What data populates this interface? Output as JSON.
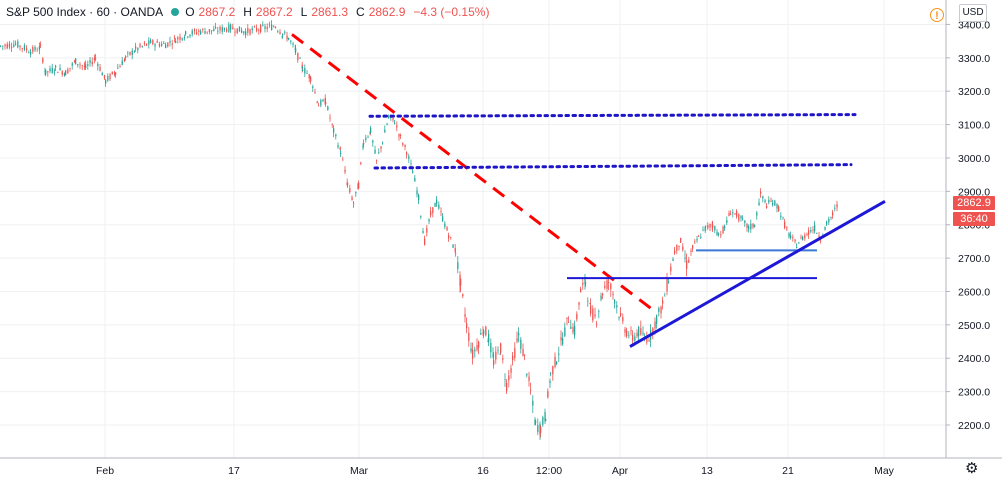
{
  "legend": {
    "title": "S&P 500 Index · 60 · OANDA",
    "open_k": "O",
    "open_v": "2867.2",
    "high_k": "H",
    "high_v": "2867.2",
    "low_k": "L",
    "low_v": "2861.3",
    "close_k": "C",
    "close_v": "2862.9",
    "change": "−4.3 (−0.15%)"
  },
  "currency": "USD",
  "last_price_label": "2862.9",
  "countdown_label": "36:40",
  "colors": {
    "up": "#26a69a",
    "down": "#ef5350",
    "trend": "#ff0000",
    "blue_line": "#1d18d8",
    "support": "#3a78d6",
    "dotted": "#1e14c8",
    "grid": "#eef0f3",
    "axis_text": "#131722"
  },
  "chart_data": {
    "type": "line",
    "title": "S&P 500 Index · 60 · OANDA",
    "xlabel": "",
    "ylabel": "",
    "y_ticks": [
      2200,
      2300,
      2400,
      2500,
      2600,
      2700,
      2800,
      2900,
      3000,
      3100,
      3200,
      3300,
      3400
    ],
    "y_tick_labels": [
      "2200.0",
      "2300.0",
      "2400.0",
      "2500.0",
      "2600.0",
      "2700.0",
      "2800.0",
      "2900.0",
      "3000.0",
      "3100.0",
      "3200.0",
      "3300.0",
      "3400.0"
    ],
    "ylim": [
      2130,
      3450
    ],
    "x_ticks": [
      {
        "label": "Feb",
        "x": 105
      },
      {
        "label": "17",
        "x": 234
      },
      {
        "label": "Mar",
        "x": 359
      },
      {
        "label": "16",
        "x": 483
      },
      {
        "label": "12:00",
        "x": 549
      },
      {
        "label": "Apr",
        "x": 620
      },
      {
        "label": "13",
        "x": 707
      },
      {
        "label": "21",
        "x": 788
      },
      {
        "label": "May",
        "x": 884
      }
    ],
    "x_range": [
      0,
      946
    ],
    "series": [
      {
        "values": [
          [
            0,
            3335
          ],
          [
            15,
            3342
          ],
          [
            30,
            3320
          ],
          [
            40,
            3330
          ],
          [
            45,
            3255
          ],
          [
            55,
            3268
          ],
          [
            65,
            3255
          ],
          [
            75,
            3290
          ],
          [
            85,
            3270
          ],
          [
            95,
            3300
          ],
          [
            105,
            3230
          ],
          [
            115,
            3260
          ],
          [
            125,
            3300
          ],
          [
            135,
            3325
          ],
          [
            150,
            3345
          ],
          [
            165,
            3340
          ],
          [
            175,
            3355
          ],
          [
            185,
            3370
          ],
          [
            200,
            3380
          ],
          [
            215,
            3382
          ],
          [
            230,
            3390
          ],
          [
            245,
            3378
          ],
          [
            260,
            3388
          ],
          [
            275,
            3395
          ],
          [
            282,
            3372
          ],
          [
            288,
            3360
          ],
          [
            295,
            3320
          ],
          [
            302,
            3270
          ],
          [
            310,
            3240
          ],
          [
            318,
            3160
          ],
          [
            325,
            3170
          ],
          [
            333,
            3080
          ],
          [
            340,
            3020
          ],
          [
            347,
            2920
          ],
          [
            353,
            2865
          ],
          [
            358,
            2920
          ],
          [
            363,
            3050
          ],
          [
            370,
            3080
          ],
          [
            376,
            2990
          ],
          [
            382,
            3050
          ],
          [
            388,
            3120
          ],
          [
            394,
            3110
          ],
          [
            400,
            3060
          ],
          [
            406,
            3020
          ],
          [
            412,
            2960
          ],
          [
            418,
            2880
          ],
          [
            424,
            2750
          ],
          [
            430,
            2830
          ],
          [
            436,
            2870
          ],
          [
            442,
            2820
          ],
          [
            448,
            2770
          ],
          [
            455,
            2720
          ],
          [
            460,
            2620
          ],
          [
            466,
            2500
          ],
          [
            472,
            2410
          ],
          [
            478,
            2450
          ],
          [
            483,
            2490
          ],
          [
            488,
            2460
          ],
          [
            493,
            2390
          ],
          [
            500,
            2430
          ],
          [
            506,
            2320
          ],
          [
            512,
            2390
          ],
          [
            518,
            2470
          ],
          [
            524,
            2400
          ],
          [
            530,
            2300
          ],
          [
            535,
            2200
          ],
          [
            540,
            2190
          ],
          [
            545,
            2230
          ],
          [
            550,
            2350
          ],
          [
            556,
            2400
          ],
          [
            562,
            2460
          ],
          [
            568,
            2520
          ],
          [
            574,
            2480
          ],
          [
            580,
            2600
          ],
          [
            585,
            2630
          ],
          [
            590,
            2540
          ],
          [
            596,
            2520
          ],
          [
            602,
            2600
          ],
          [
            608,
            2630
          ],
          [
            614,
            2580
          ],
          [
            620,
            2520
          ],
          [
            626,
            2480
          ],
          [
            632,
            2460
          ],
          [
            638,
            2480
          ],
          [
            644,
            2460
          ],
          [
            650,
            2470
          ],
          [
            656,
            2520
          ],
          [
            662,
            2560
          ],
          [
            668,
            2640
          ],
          [
            674,
            2720
          ],
          [
            680,
            2750
          ],
          [
            686,
            2680
          ],
          [
            692,
            2730
          ],
          [
            698,
            2760
          ],
          [
            705,
            2790
          ],
          [
            712,
            2800
          ],
          [
            718,
            2770
          ],
          [
            724,
            2790
          ],
          [
            730,
            2840
          ],
          [
            736,
            2830
          ],
          [
            742,
            2810
          ],
          [
            748,
            2790
          ],
          [
            754,
            2800
          ],
          [
            760,
            2890
          ],
          [
            766,
            2860
          ],
          [
            772,
            2870
          ],
          [
            778,
            2850
          ],
          [
            784,
            2800
          ],
          [
            790,
            2760
          ],
          [
            796,
            2740
          ],
          [
            802,
            2760
          ],
          [
            808,
            2780
          ],
          [
            814,
            2790
          ],
          [
            820,
            2760
          ],
          [
            826,
            2800
          ],
          [
            832,
            2830
          ],
          [
            838,
            2865
          ]
        ]
      }
    ],
    "drawings": [
      {
        "type": "dashed-trend",
        "color": "#ff0000",
        "from": [
          292,
          3370
        ],
        "to": [
          655,
          2540
        ]
      },
      {
        "type": "dotted-hline",
        "color": "#1e14c8",
        "from": [
          370,
          3125
        ],
        "to": [
          855,
          3130
        ]
      },
      {
        "type": "dotted-hline",
        "color": "#1e14c8",
        "from": [
          375,
          2970
        ],
        "to": [
          851,
          2980
        ]
      },
      {
        "type": "solid-hline",
        "color": "#1d18d8",
        "from": [
          567,
          2640
        ],
        "to": [
          817,
          2640
        ]
      },
      {
        "type": "solid-hline",
        "color": "#3a78d6",
        "from": [
          696,
          2723
        ],
        "to": [
          817,
          2723
        ]
      },
      {
        "type": "trend",
        "color": "#1d18d8",
        "from": [
          630,
          2435
        ],
        "to": [
          885,
          2870
        ]
      }
    ]
  }
}
